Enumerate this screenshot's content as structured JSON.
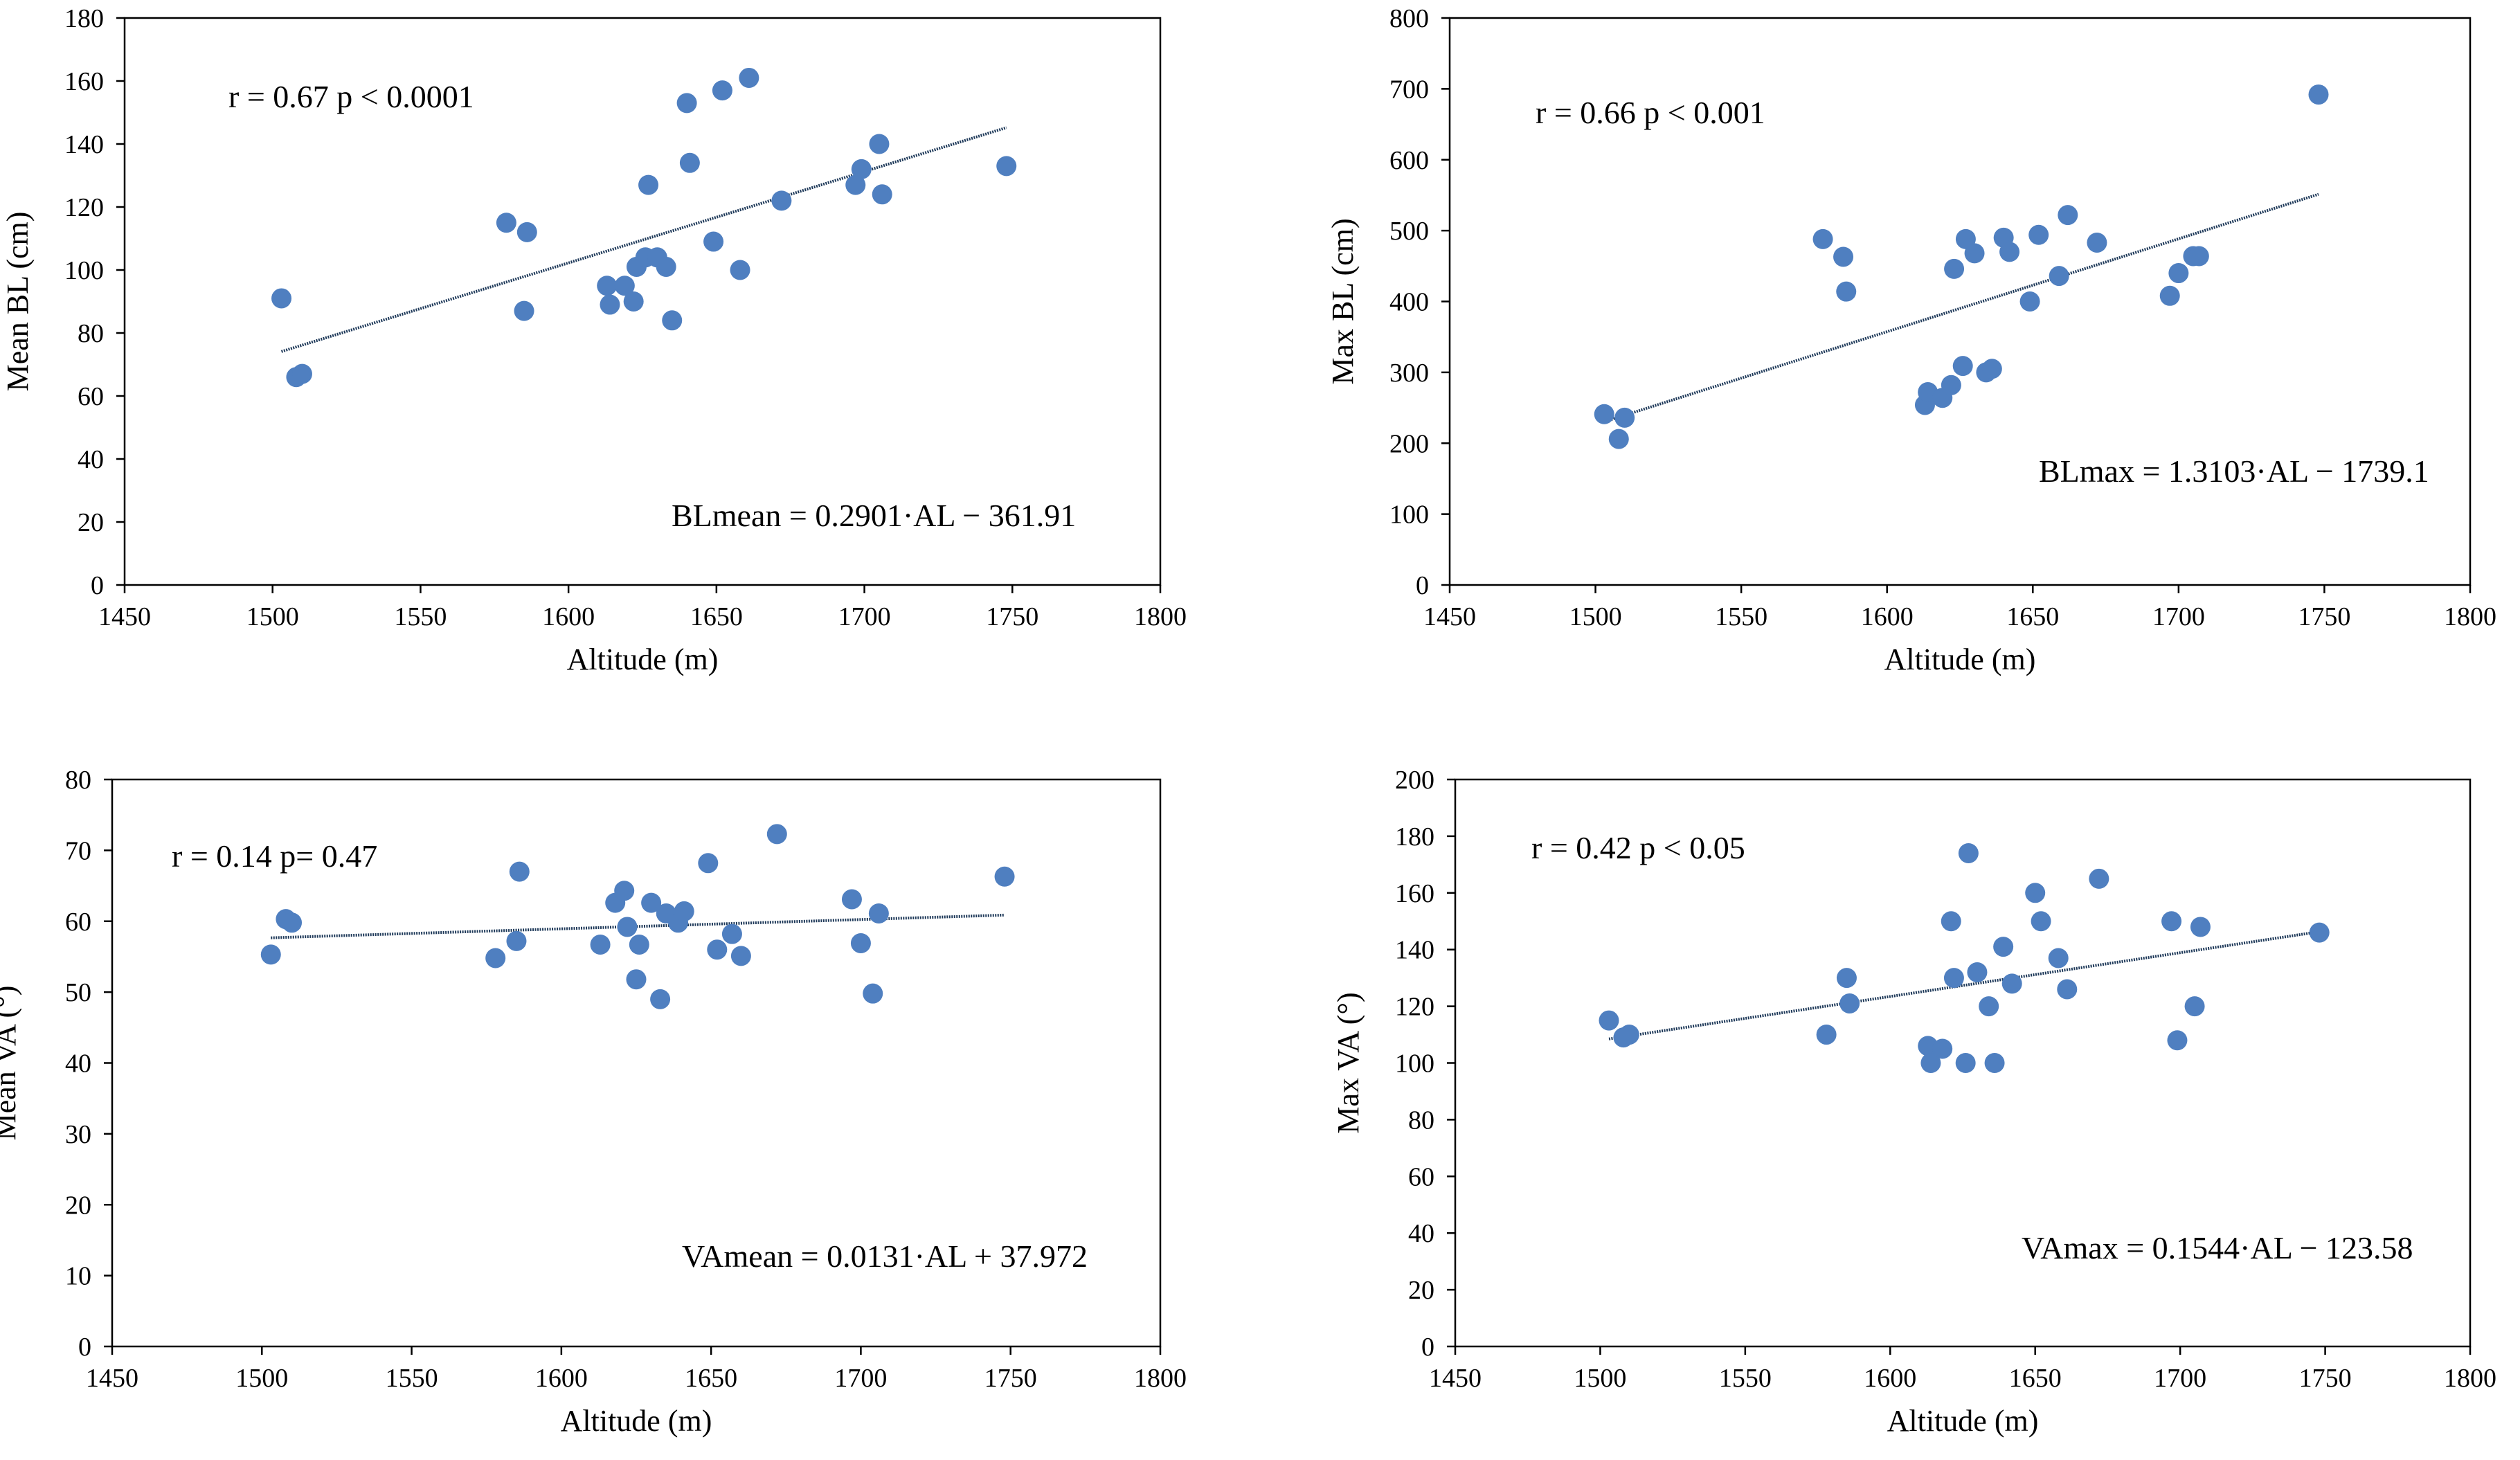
{
  "colors": {
    "point": "#4f7fc0",
    "trend": "#1f3a5a",
    "axis": "#000000",
    "frame": "#000000"
  },
  "chart_data": [
    {
      "type": "scatter",
      "xlabel": "Altitude (m)",
      "ylabel": "Mean BL (cm)",
      "xlim": [
        1450,
        1800
      ],
      "ylim": [
        0,
        180
      ],
      "xticks": [
        1450,
        1500,
        1550,
        1600,
        1650,
        1700,
        1750,
        1800
      ],
      "yticks": [
        0,
        20,
        40,
        60,
        80,
        100,
        120,
        140,
        160,
        180
      ],
      "grid": false,
      "stat_text": "r = 0.67   p < 0.0001",
      "equation_text": "BLmean = 0.2901·AL − 361.91",
      "trendline": {
        "slope": 0.2901,
        "intercept": -361.91,
        "x_range": [
          1503,
          1748
        ]
      },
      "points": [
        [
          1503,
          91
        ],
        [
          1508,
          66
        ],
        [
          1510,
          67
        ],
        [
          1579,
          115
        ],
        [
          1585,
          87
        ],
        [
          1586,
          112
        ],
        [
          1613,
          95
        ],
        [
          1614,
          89
        ],
        [
          1619,
          95
        ],
        [
          1622,
          90
        ],
        [
          1623,
          101
        ],
        [
          1626,
          104
        ],
        [
          1627,
          127
        ],
        [
          1630,
          104
        ],
        [
          1633,
          101
        ],
        [
          1635,
          84
        ],
        [
          1640,
          153
        ],
        [
          1641,
          134
        ],
        [
          1649,
          109
        ],
        [
          1652,
          157
        ],
        [
          1658,
          100
        ],
        [
          1661,
          161
        ],
        [
          1672,
          122
        ],
        [
          1697,
          127
        ],
        [
          1699,
          132
        ],
        [
          1705,
          140
        ],
        [
          1706,
          124
        ],
        [
          1748,
          133
        ]
      ]
    },
    {
      "type": "scatter",
      "xlabel": "Altitude (m)",
      "ylabel": "Max BL (cm)",
      "xlim": [
        1450,
        1800
      ],
      "ylim": [
        0,
        800
      ],
      "xticks": [
        1450,
        1500,
        1550,
        1600,
        1650,
        1700,
        1750,
        1800
      ],
      "yticks": [
        0,
        100,
        200,
        300,
        400,
        500,
        600,
        700,
        800
      ],
      "grid": false,
      "stat_text": "r = 0.66   p < 0.001",
      "equation_text": "BLmax = 1.3103·AL − 1739.1",
      "trendline": {
        "slope": 1.3103,
        "intercept": -1739.1,
        "x_range": [
          1503,
          1748
        ]
      },
      "points": [
        [
          1503,
          241
        ],
        [
          1508,
          206
        ],
        [
          1510,
          236
        ],
        [
          1578,
          488
        ],
        [
          1585,
          463
        ],
        [
          1586,
          414
        ],
        [
          1613,
          254
        ],
        [
          1614,
          272
        ],
        [
          1619,
          264
        ],
        [
          1622,
          282
        ],
        [
          1623,
          446
        ],
        [
          1626,
          309
        ],
        [
          1627,
          488
        ],
        [
          1630,
          468
        ],
        [
          1634,
          300
        ],
        [
          1636,
          305
        ],
        [
          1640,
          490
        ],
        [
          1642,
          470
        ],
        [
          1649,
          400
        ],
        [
          1652,
          494
        ],
        [
          1659,
          436
        ],
        [
          1662,
          522
        ],
        [
          1672,
          483
        ],
        [
          1697,
          408
        ],
        [
          1700,
          440
        ],
        [
          1705,
          464
        ],
        [
          1707,
          464
        ],
        [
          1748,
          692
        ]
      ]
    },
    {
      "type": "scatter",
      "xlabel": "Altitude (m)",
      "ylabel": "Mean VA (°)",
      "xlim": [
        1450,
        1800
      ],
      "ylim": [
        0,
        80
      ],
      "xticks": [
        1450,
        1500,
        1550,
        1600,
        1650,
        1700,
        1750,
        1800
      ],
      "yticks": [
        0,
        10,
        20,
        30,
        40,
        50,
        60,
        70,
        80
      ],
      "grid": false,
      "stat_text": "r = 0.14    p= 0.47",
      "equation_text": "VAmean = 0.0131·AL + 37.972",
      "trendline": {
        "slope": 0.0131,
        "intercept": 37.972,
        "x_range": [
          1503,
          1748
        ]
      },
      "points": [
        [
          1503,
          55.3
        ],
        [
          1508,
          60.3
        ],
        [
          1510,
          59.8
        ],
        [
          1578,
          54.8
        ],
        [
          1585,
          57.2
        ],
        [
          1586,
          67.0
        ],
        [
          1613,
          56.7
        ],
        [
          1618,
          62.6
        ],
        [
          1621,
          64.3
        ],
        [
          1622,
          59.2
        ],
        [
          1625,
          51.8
        ],
        [
          1626,
          56.7
        ],
        [
          1630,
          62.6
        ],
        [
          1633,
          49.0
        ],
        [
          1635,
          61.1
        ],
        [
          1639,
          59.8
        ],
        [
          1641,
          61.4
        ],
        [
          1649,
          68.2
        ],
        [
          1652,
          56.0
        ],
        [
          1657,
          58.2
        ],
        [
          1660,
          55.1
        ],
        [
          1672,
          72.3
        ],
        [
          1697,
          63.1
        ],
        [
          1700,
          56.9
        ],
        [
          1704,
          49.8
        ],
        [
          1706,
          61.1
        ],
        [
          1748,
          66.3
        ]
      ]
    },
    {
      "type": "scatter",
      "xlabel": "Altitude (m)",
      "ylabel": "Max VA (°)",
      "xlim": [
        1450,
        1800
      ],
      "ylim": [
        0,
        200
      ],
      "xticks": [
        1450,
        1500,
        1550,
        1600,
        1650,
        1700,
        1750,
        1800
      ],
      "yticks": [
        0,
        20,
        40,
        60,
        80,
        100,
        120,
        140,
        160,
        180,
        200
      ],
      "grid": false,
      "stat_text": "r = 0.42   p < 0.05",
      "equation_text": "VAmax = 0.1544·AL − 123.58",
      "trendline": {
        "slope": 0.1544,
        "intercept": -123.58,
        "x_range": [
          1503,
          1748
        ]
      },
      "points": [
        [
          1503,
          115
        ],
        [
          1508,
          109
        ],
        [
          1510,
          110
        ],
        [
          1578,
          110
        ],
        [
          1585,
          130
        ],
        [
          1586,
          121
        ],
        [
          1613,
          106
        ],
        [
          1614,
          100
        ],
        [
          1618,
          105
        ],
        [
          1621,
          150
        ],
        [
          1622,
          130
        ],
        [
          1626,
          100
        ],
        [
          1627,
          174
        ],
        [
          1630,
          132
        ],
        [
          1634,
          120
        ],
        [
          1636,
          100
        ],
        [
          1639,
          141
        ],
        [
          1642,
          128
        ],
        [
          1650,
          160
        ],
        [
          1652,
          150
        ],
        [
          1658,
          137
        ],
        [
          1661,
          126
        ],
        [
          1672,
          165
        ],
        [
          1697,
          150
        ],
        [
          1699,
          108
        ],
        [
          1705,
          120
        ],
        [
          1707,
          148
        ],
        [
          1748,
          146
        ]
      ]
    }
  ]
}
